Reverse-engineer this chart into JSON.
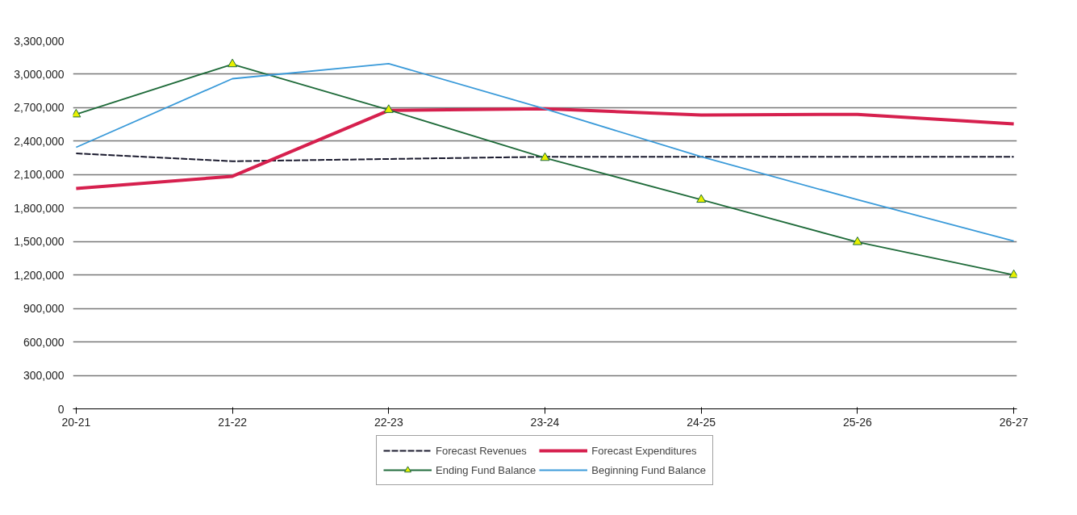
{
  "chart_data": {
    "type": "line",
    "categories": [
      "20-21",
      "21-22",
      "22-23",
      "23-24",
      "24-25",
      "25-26",
      "26-27"
    ],
    "series": [
      {
        "name": "Forecast Revenues",
        "color": "#1a1a2e",
        "line_style": "dashed",
        "values": [
          2290000,
          2220000,
          2240000,
          2260000,
          2260000,
          2260000,
          2260000
        ]
      },
      {
        "name": "Forecast Expenditures",
        "color": "#d6204e",
        "values": [
          1975000,
          2085000,
          2675000,
          2690000,
          2635000,
          2640000,
          2555000
        ]
      },
      {
        "name": "Ending Fund Balance",
        "color": "#1f6b3a",
        "marker": "triangle",
        "values": [
          2640000,
          3090000,
          2680000,
          2250000,
          1875000,
          1495000,
          1200000
        ]
      },
      {
        "name": "Beginning Fund Balance",
        "color": "#3a9ad9",
        "values": [
          2345000,
          2960000,
          3095000,
          2690000,
          2260000,
          1875000,
          1505000
        ]
      }
    ],
    "ylim": [
      0,
      3300000
    ],
    "yticks": [
      {
        "value": 0,
        "label": "0"
      },
      {
        "value": 300000,
        "label": "300,000"
      },
      {
        "value": 600000,
        "label": "600,000"
      },
      {
        "value": 900000,
        "label": "900,000"
      },
      {
        "value": 1200000,
        "label": "1,200,000"
      },
      {
        "value": 1500000,
        "label": "1,500,000"
      },
      {
        "value": 1800000,
        "label": "1,800,000"
      },
      {
        "value": 2100000,
        "label": "2,100,000"
      },
      {
        "value": 2400000,
        "label": "2,400,000"
      },
      {
        "value": 2700000,
        "label": "2,700,000"
      },
      {
        "value": 3000000,
        "label": "3,000,000"
      },
      {
        "value": 3300000,
        "label": "3,300,000"
      }
    ],
    "grid": "y",
    "legend": "bottom"
  }
}
